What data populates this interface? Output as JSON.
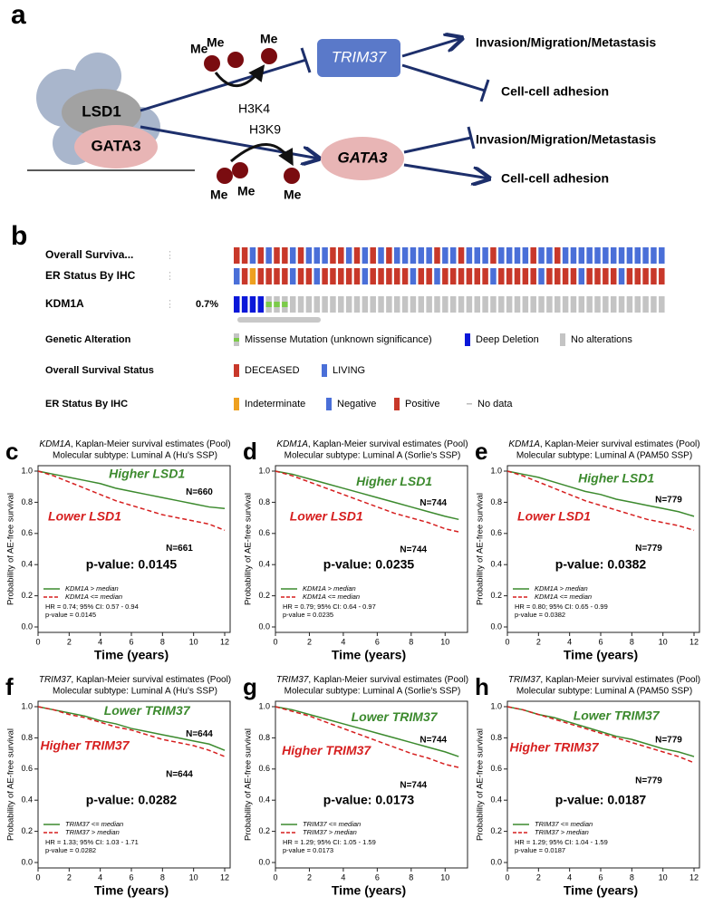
{
  "diagram": {
    "panel": "a",
    "complex": [
      "LSD1",
      "GATA3"
    ],
    "me": "Me",
    "marks": [
      "H3K4",
      "H3K9"
    ],
    "targets": [
      "TRIM37",
      "GATA3"
    ],
    "outcomes": [
      "Invasion/Migration/Metastasis",
      "Cell-cell adhesion",
      "Invasion/Migration/Metastasis",
      "Cell-cell adhesion"
    ]
  },
  "oncoprint": {
    "panel": "b",
    "tracks": [
      {
        "label": "Overall Surviva...",
        "cells": [
          "DECEASED",
          "DECEASED",
          "LIVING",
          "DECEASED",
          "LIVING",
          "DECEASED",
          "DECEASED",
          "LIVING",
          "DECEASED",
          "LIVING",
          "LIVING",
          "LIVING",
          "DECEASED",
          "DECEASED",
          "LIVING",
          "DECEASED",
          "LIVING",
          "DECEASED",
          "LIVING",
          "DECEASED",
          "LIVING",
          "LIVING",
          "LIVING",
          "LIVING",
          "LIVING",
          "DECEASED",
          "LIVING",
          "LIVING",
          "DECEASED",
          "LIVING",
          "LIVING",
          "LIVING",
          "DECEASED",
          "LIVING",
          "LIVING",
          "LIVING",
          "LIVING",
          "DECEASED",
          "LIVING",
          "LIVING",
          "DECEASED",
          "LIVING",
          "LIVING",
          "LIVING",
          "LIVING",
          "LIVING",
          "LIVING",
          "LIVING",
          "LIVING",
          "LIVING",
          "LIVING",
          "LIVING",
          "LIVING",
          "LIVING"
        ]
      },
      {
        "label": "ER Status By IHC",
        "cells": [
          "Negative",
          "Positive",
          "Indeterminate",
          "Positive",
          "Positive",
          "Positive",
          "Positive",
          "Negative",
          "Positive",
          "Positive",
          "Negative",
          "Positive",
          "Positive",
          "Positive",
          "Positive",
          "Positive",
          "Negative",
          "Positive",
          "Positive",
          "Positive",
          "Positive",
          "Positive",
          "Negative",
          "Positive",
          "Positive",
          "Negative",
          "Positive",
          "Positive",
          "Positive",
          "Positive",
          "Positive",
          "Positive",
          "Negative",
          "Positive",
          "Positive",
          "Positive",
          "Positive",
          "Positive",
          "Negative",
          "Positive",
          "Positive",
          "Positive",
          "Positive",
          "Negative",
          "Positive",
          "Positive",
          "Positive",
          "Positive",
          "Negative",
          "Positive",
          "Positive",
          "Positive",
          "Positive",
          "Positive"
        ]
      },
      {
        "label": "KDM1A",
        "percent": "0.7%",
        "cells": [
          "Deep Deletion",
          "Deep Deletion",
          "Deep Deletion",
          "Deep Deletion",
          "Missense Mutation (unknown significance)",
          "Missense Mutation (unknown significance)",
          "Missense Mutation (unknown significance)",
          "No alterations",
          "No alterations",
          "No alterations",
          "No alterations",
          "No alterations",
          "No alterations",
          "No alterations",
          "No alterations",
          "No alterations",
          "No alterations",
          "No alterations",
          "No alterations",
          "No alterations",
          "No alterations",
          "No alterations",
          "No alterations",
          "No alterations",
          "No alterations",
          "No alterations",
          "No alterations",
          "No alterations",
          "No alterations",
          "No alterations",
          "No alterations",
          "No alterations",
          "No alterations",
          "No alterations",
          "No alterations",
          "No alterations",
          "No alterations",
          "No alterations",
          "No alterations",
          "No alterations",
          "No alterations",
          "No alterations",
          "No alterations",
          "No alterations",
          "No alterations",
          "No alterations",
          "No alterations",
          "No alterations",
          "No alterations",
          "No alterations",
          "No alterations",
          "No alterations",
          "No alterations",
          "No alterations"
        ]
      }
    ],
    "legend": [
      {
        "title": "Genetic Alteration",
        "items": [
          {
            "label": "Missense Mutation (unknown significance)",
            "color": "#7ccb4a"
          },
          {
            "label": "Deep Deletion",
            "color": "#0a17d9"
          },
          {
            "label": "No alterations",
            "color": "#c4c4c4"
          }
        ]
      },
      {
        "title": "Overall Survival Status",
        "items": [
          {
            "label": "DECEASED",
            "color": "#c8382a"
          },
          {
            "label": "LIVING",
            "color": "#4a6fd8"
          }
        ]
      },
      {
        "title": "ER Status By IHC",
        "items": [
          {
            "label": "Indeterminate",
            "color": "#eea020"
          },
          {
            "label": "Negative",
            "color": "#4a6fd8"
          },
          {
            "label": "Positive",
            "color": "#c8382a"
          },
          {
            "label": "No data",
            "color": "#bbbbbb"
          }
        ]
      }
    ]
  },
  "chart_data": [
    {
      "type": "line",
      "panel": "c",
      "title_gene": "KDM1A",
      "title": ", Kaplan-Meier survival estimates (Pool)",
      "subtitle": "Molecular subtype: Luminal A (Hu's SSP)",
      "xlabel": "Time (years)",
      "ylabel": "Probability of AE-free survival",
      "xlim": [
        0,
        12
      ],
      "xticks": [
        0,
        2,
        4,
        6,
        8,
        10,
        12
      ],
      "ylim": [
        0,
        1
      ],
      "yticks": [
        {
          "value": 0,
          "label": "0.0"
        },
        0.2,
        0.4,
        0.6,
        0.8,
        {
          "value": 1,
          "label": "1.0"
        }
      ],
      "series": [
        {
          "name": "KDM1A > median",
          "color": "#3c8a2e",
          "line_style": "solid",
          "label": "Higher LSD1",
          "n_label": "N=660",
          "x": [
            0,
            1,
            2,
            3,
            4,
            5,
            6,
            7,
            8,
            9,
            10,
            11,
            12
          ],
          "values": [
            1,
            0.98,
            0.96,
            0.94,
            0.92,
            0.89,
            0.87,
            0.85,
            0.83,
            0.81,
            0.79,
            0.77,
            0.76
          ]
        },
        {
          "name": "KDM1A <= median",
          "color": "#d61f1f",
          "line_style": "dashed",
          "label": "Lower LSD1",
          "n_label": "N=661",
          "x": [
            0,
            1,
            2,
            3,
            4,
            5,
            6,
            7,
            8,
            9,
            10,
            11,
            12
          ],
          "values": [
            1,
            0.97,
            0.93,
            0.89,
            0.85,
            0.81,
            0.78,
            0.75,
            0.72,
            0.7,
            0.68,
            0.66,
            0.62
          ]
        }
      ],
      "pvalue_label": "p-value: 0.0145",
      "stats": [
        "HR = 0.74; 95% CI: 0.57 - 0.94",
        "p-value = 0.0145"
      ]
    },
    {
      "type": "line",
      "panel": "d",
      "title_gene": "KDM1A",
      "title": ", Kaplan-Meier survival estimates (Pool)",
      "subtitle": "Molecular subtype: Luminal A (Sorlie's SSP)",
      "xlabel": "Time (years)",
      "ylabel": "Probability of AE-free survival",
      "xlim": [
        0,
        11
      ],
      "xticks": [
        0,
        2,
        4,
        6,
        8,
        10
      ],
      "ylim": [
        0,
        1
      ],
      "yticks": [
        {
          "value": 0,
          "label": "0.0"
        },
        0.2,
        0.4,
        0.6,
        0.8,
        {
          "value": 1,
          "label": "1.0"
        }
      ],
      "series": [
        {
          "name": "KDM1A > median",
          "color": "#3c8a2e",
          "line_style": "solid",
          "label": "Higher LSD1",
          "n_label": "N=744",
          "x": [
            0,
            1,
            2,
            3,
            4,
            5,
            6,
            7,
            8,
            9,
            10,
            10.8
          ],
          "values": [
            1,
            0.98,
            0.95,
            0.92,
            0.89,
            0.86,
            0.83,
            0.8,
            0.77,
            0.74,
            0.71,
            0.69
          ]
        },
        {
          "name": "KDM1A <= median",
          "color": "#d61f1f",
          "line_style": "dashed",
          "label": "Lower LSD1",
          "n_label": "N=744",
          "x": [
            0,
            1,
            2,
            3,
            4,
            5,
            6,
            7,
            8,
            9,
            10,
            10.8
          ],
          "values": [
            1,
            0.97,
            0.93,
            0.89,
            0.85,
            0.81,
            0.77,
            0.73,
            0.7,
            0.67,
            0.63,
            0.61
          ]
        }
      ],
      "pvalue_label": "p-value: 0.0235",
      "stats": [
        "HR = 0.79; 95% CI: 0.64 - 0.97",
        "p-value = 0.0235"
      ]
    },
    {
      "type": "line",
      "panel": "e",
      "title_gene": "KDM1A",
      "title": ", Kaplan-Meier survival estimates (Pool)",
      "subtitle": "Molecular subtype: Luminal A (PAM50 SSP)",
      "xlabel": "Time (years)",
      "ylabel": "Probability of AE-free survival",
      "xlim": [
        0,
        12
      ],
      "xticks": [
        0,
        2,
        4,
        6,
        8,
        10,
        12
      ],
      "ylim": [
        0,
        1
      ],
      "yticks": [
        {
          "value": 0,
          "label": "0.0"
        },
        0.2,
        0.4,
        0.6,
        0.8,
        {
          "value": 1,
          "label": "1.0"
        }
      ],
      "series": [
        {
          "name": "KDM1A > median",
          "color": "#3c8a2e",
          "line_style": "solid",
          "label": "Higher LSD1",
          "n_label": "N=779",
          "x": [
            0,
            1,
            2,
            3,
            4,
            5,
            6,
            7,
            8,
            9,
            10,
            11,
            12
          ],
          "values": [
            1,
            0.98,
            0.96,
            0.93,
            0.9,
            0.87,
            0.85,
            0.82,
            0.8,
            0.78,
            0.76,
            0.74,
            0.71
          ]
        },
        {
          "name": "KDM1A <= median",
          "color": "#d61f1f",
          "line_style": "dashed",
          "label": "Lower LSD1",
          "n_label": "N=779",
          "x": [
            0,
            1,
            2,
            3,
            4,
            5,
            6,
            7,
            8,
            9,
            10,
            11,
            12
          ],
          "values": [
            1,
            0.97,
            0.93,
            0.89,
            0.85,
            0.81,
            0.78,
            0.75,
            0.72,
            0.69,
            0.67,
            0.65,
            0.62
          ]
        }
      ],
      "pvalue_label": "p-value: 0.0382",
      "stats": [
        "HR = 0.80; 95% CI: 0.65 - 0.99",
        "p-value = 0.0382"
      ]
    },
    {
      "type": "line",
      "panel": "f",
      "title_gene": "TRIM37",
      "title": ", Kaplan-Meier survival estimates (Pool)",
      "subtitle": "Molecular subtype: Luminal A (Hu's SSP)",
      "xlabel": "Time (years)",
      "ylabel": "Probability of AE-free survival",
      "xlim": [
        0,
        12
      ],
      "xticks": [
        0,
        2,
        4,
        6,
        8,
        10,
        12
      ],
      "ylim": [
        0,
        1
      ],
      "yticks": [
        {
          "value": 0,
          "label": "0.0"
        },
        0.2,
        0.4,
        0.6,
        0.8,
        {
          "value": 1,
          "label": "1.0"
        }
      ],
      "series": [
        {
          "name": "TRIM37 <= median",
          "color": "#3c8a2e",
          "line_style": "solid",
          "label": "Lower TRIM37",
          "n_label": "N=644",
          "x": [
            0,
            1,
            2,
            3,
            4,
            5,
            6,
            7,
            8,
            9,
            10,
            11,
            12
          ],
          "values": [
            1,
            0.98,
            0.96,
            0.94,
            0.91,
            0.89,
            0.86,
            0.84,
            0.82,
            0.8,
            0.78,
            0.76,
            0.72
          ]
        },
        {
          "name": "TRIM37 > median",
          "color": "#d61f1f",
          "line_style": "dashed",
          "label": "Higher TRIM37",
          "n_label": "N=644",
          "x": [
            0,
            1,
            2,
            3,
            4,
            5,
            6,
            7,
            8,
            9,
            10,
            11,
            12
          ],
          "values": [
            1,
            0.98,
            0.95,
            0.93,
            0.9,
            0.87,
            0.85,
            0.82,
            0.79,
            0.77,
            0.75,
            0.72,
            0.68
          ]
        }
      ],
      "pvalue_label": "p-value: 0.0282",
      "stats": [
        "HR = 1.33; 95% CI: 1.03 - 1.71",
        "p-value = 0.0282"
      ]
    },
    {
      "type": "line",
      "panel": "g",
      "title_gene": "TRIM37",
      "title": ", Kaplan-Meier survival estimates (Pool)",
      "subtitle": "Molecular subtype: Luminal A (Sorlie's SSP)",
      "xlabel": "Time (years)",
      "ylabel": "Probability of AE-free survival",
      "xlim": [
        0,
        11
      ],
      "xticks": [
        0,
        2,
        4,
        6,
        8,
        10
      ],
      "ylim": [
        0,
        1
      ],
      "yticks": [
        {
          "value": 0,
          "label": "0.0"
        },
        0.2,
        0.4,
        0.6,
        0.8,
        {
          "value": 1,
          "label": "1.0"
        }
      ],
      "series": [
        {
          "name": "TRIM37 <= median",
          "color": "#3c8a2e",
          "line_style": "solid",
          "label": "Lower TRIM37",
          "n_label": "N=744",
          "x": [
            0,
            1,
            2,
            3,
            4,
            5,
            6,
            7,
            8,
            9,
            10,
            10.8
          ],
          "values": [
            1,
            0.98,
            0.95,
            0.92,
            0.89,
            0.86,
            0.83,
            0.8,
            0.77,
            0.74,
            0.71,
            0.68
          ]
        },
        {
          "name": "TRIM37 > median",
          "color": "#d61f1f",
          "line_style": "dashed",
          "label": "Higher TRIM37",
          "n_label": "N=744",
          "x": [
            0,
            1,
            2,
            3,
            4,
            5,
            6,
            7,
            8,
            9,
            10,
            10.8
          ],
          "values": [
            1,
            0.97,
            0.94,
            0.9,
            0.86,
            0.82,
            0.78,
            0.74,
            0.7,
            0.67,
            0.63,
            0.61
          ]
        }
      ],
      "pvalue_label": "p-value: 0.0173",
      "stats": [
        "HR = 1.29; 95% CI: 1.05 - 1.59",
        "p-value = 0.0173"
      ]
    },
    {
      "type": "line",
      "panel": "h",
      "title_gene": "TRIM37",
      "title": ", Kaplan-Meier survival estimates (Pool)",
      "subtitle": "Molecular subtype: Luminal A (PAM50 SSP)",
      "xlabel": "Time (years)",
      "ylabel": "Probability of AE-free survival",
      "xlim": [
        0,
        12
      ],
      "xticks": [
        0,
        2,
        4,
        6,
        8,
        10,
        12
      ],
      "ylim": [
        0,
        1
      ],
      "yticks": [
        {
          "value": 0,
          "label": "0.0"
        },
        0.2,
        0.4,
        0.6,
        0.8,
        {
          "value": 1,
          "label": "1.0"
        }
      ],
      "series": [
        {
          "name": "TRIM37 <= median",
          "color": "#3c8a2e",
          "line_style": "solid",
          "label": "Lower TRIM37",
          "n_label": "N=779",
          "x": [
            0,
            1,
            2,
            3,
            4,
            5,
            6,
            7,
            8,
            9,
            10,
            11,
            12
          ],
          "values": [
            1,
            0.98,
            0.95,
            0.93,
            0.9,
            0.87,
            0.84,
            0.81,
            0.79,
            0.76,
            0.73,
            0.71,
            0.68
          ]
        },
        {
          "name": "TRIM37 > median",
          "color": "#d61f1f",
          "line_style": "dashed",
          "label": "Higher TRIM37",
          "n_label": "N=779",
          "x": [
            0,
            1,
            2,
            3,
            4,
            5,
            6,
            7,
            8,
            9,
            10,
            11,
            12
          ],
          "values": [
            1,
            0.98,
            0.95,
            0.92,
            0.89,
            0.86,
            0.83,
            0.8,
            0.77,
            0.74,
            0.71,
            0.68,
            0.64
          ]
        }
      ],
      "pvalue_label": "p-value: 0.0187",
      "stats": [
        "HR = 1.29; 95% CI: 1.04 - 1.59",
        "p-value = 0.0187"
      ]
    }
  ]
}
